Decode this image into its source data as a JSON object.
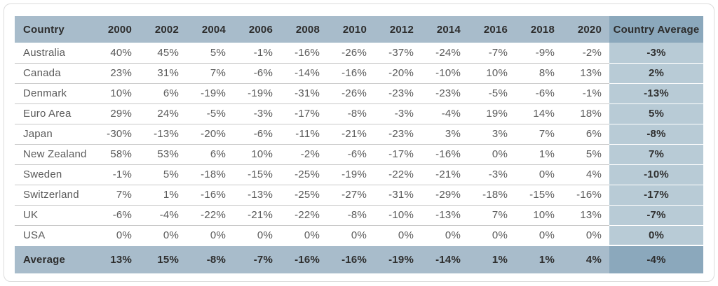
{
  "table": {
    "header": {
      "country_label": "Country",
      "years": [
        "2000",
        "2002",
        "2004",
        "2006",
        "2008",
        "2010",
        "2012",
        "2014",
        "2016",
        "2018",
        "2020"
      ],
      "average_label": "Country Average"
    },
    "rows": [
      {
        "country": "Australia",
        "values": [
          "40%",
          "45%",
          "5%",
          "-1%",
          "-16%",
          "-26%",
          "-37%",
          "-24%",
          "-7%",
          "-9%",
          "-2%"
        ],
        "average": "-3%"
      },
      {
        "country": "Canada",
        "values": [
          "23%",
          "31%",
          "7%",
          "-6%",
          "-14%",
          "-16%",
          "-20%",
          "-10%",
          "10%",
          "8%",
          "13%"
        ],
        "average": "2%"
      },
      {
        "country": "Denmark",
        "values": [
          "10%",
          "6%",
          "-19%",
          "-19%",
          "-31%",
          "-26%",
          "-23%",
          "-23%",
          "-5%",
          "-6%",
          "-1%"
        ],
        "average": "-13%"
      },
      {
        "country": "Euro Area",
        "values": [
          "29%",
          "24%",
          "-5%",
          "-3%",
          "-17%",
          "-8%",
          "-3%",
          "-4%",
          "19%",
          "14%",
          "18%"
        ],
        "average": "5%"
      },
      {
        "country": "Japan",
        "values": [
          "-30%",
          "-13%",
          "-20%",
          "-6%",
          "-11%",
          "-21%",
          "-23%",
          "3%",
          "3%",
          "7%",
          "6%"
        ],
        "average": "-8%"
      },
      {
        "country": "New Zealand",
        "values": [
          "58%",
          "53%",
          "6%",
          "10%",
          "-2%",
          "-6%",
          "-17%",
          "-16%",
          "0%",
          "1%",
          "5%"
        ],
        "average": "7%"
      },
      {
        "country": "Sweden",
        "values": [
          "-1%",
          "5%",
          "-18%",
          "-15%",
          "-25%",
          "-19%",
          "-22%",
          "-21%",
          "-3%",
          "0%",
          "4%"
        ],
        "average": "-10%"
      },
      {
        "country": "Switzerland",
        "values": [
          "7%",
          "1%",
          "-16%",
          "-13%",
          "-25%",
          "-27%",
          "-31%",
          "-29%",
          "-18%",
          "-15%",
          "-16%"
        ],
        "average": "-17%"
      },
      {
        "country": "UK",
        "values": [
          "-6%",
          "-4%",
          "-22%",
          "-21%",
          "-22%",
          "-8%",
          "-10%",
          "-13%",
          "7%",
          "10%",
          "13%"
        ],
        "average": "-7%"
      },
      {
        "country": "USA",
        "values": [
          "0%",
          "0%",
          "0%",
          "0%",
          "0%",
          "0%",
          "0%",
          "0%",
          "0%",
          "0%",
          "0%"
        ],
        "average": "0%"
      }
    ],
    "footer": {
      "label": "Average",
      "values": [
        "13%",
        "15%",
        "-8%",
        "-7%",
        "-16%",
        "-16%",
        "-19%",
        "-14%",
        "1%",
        "1%",
        "4%"
      ],
      "average": "-4%"
    }
  },
  "colors": {
    "header_bg": "#a8bccb",
    "header_average_bg": "#8ba8bc",
    "average_column_bg": "#b8cbd6",
    "footer_bg": "#a8bccb",
    "footer_average_bg": "#8ba8bc",
    "row_divider": "#c9c9c9",
    "header_text": "#2d2d2d",
    "data_text": "#5a5a5a"
  }
}
